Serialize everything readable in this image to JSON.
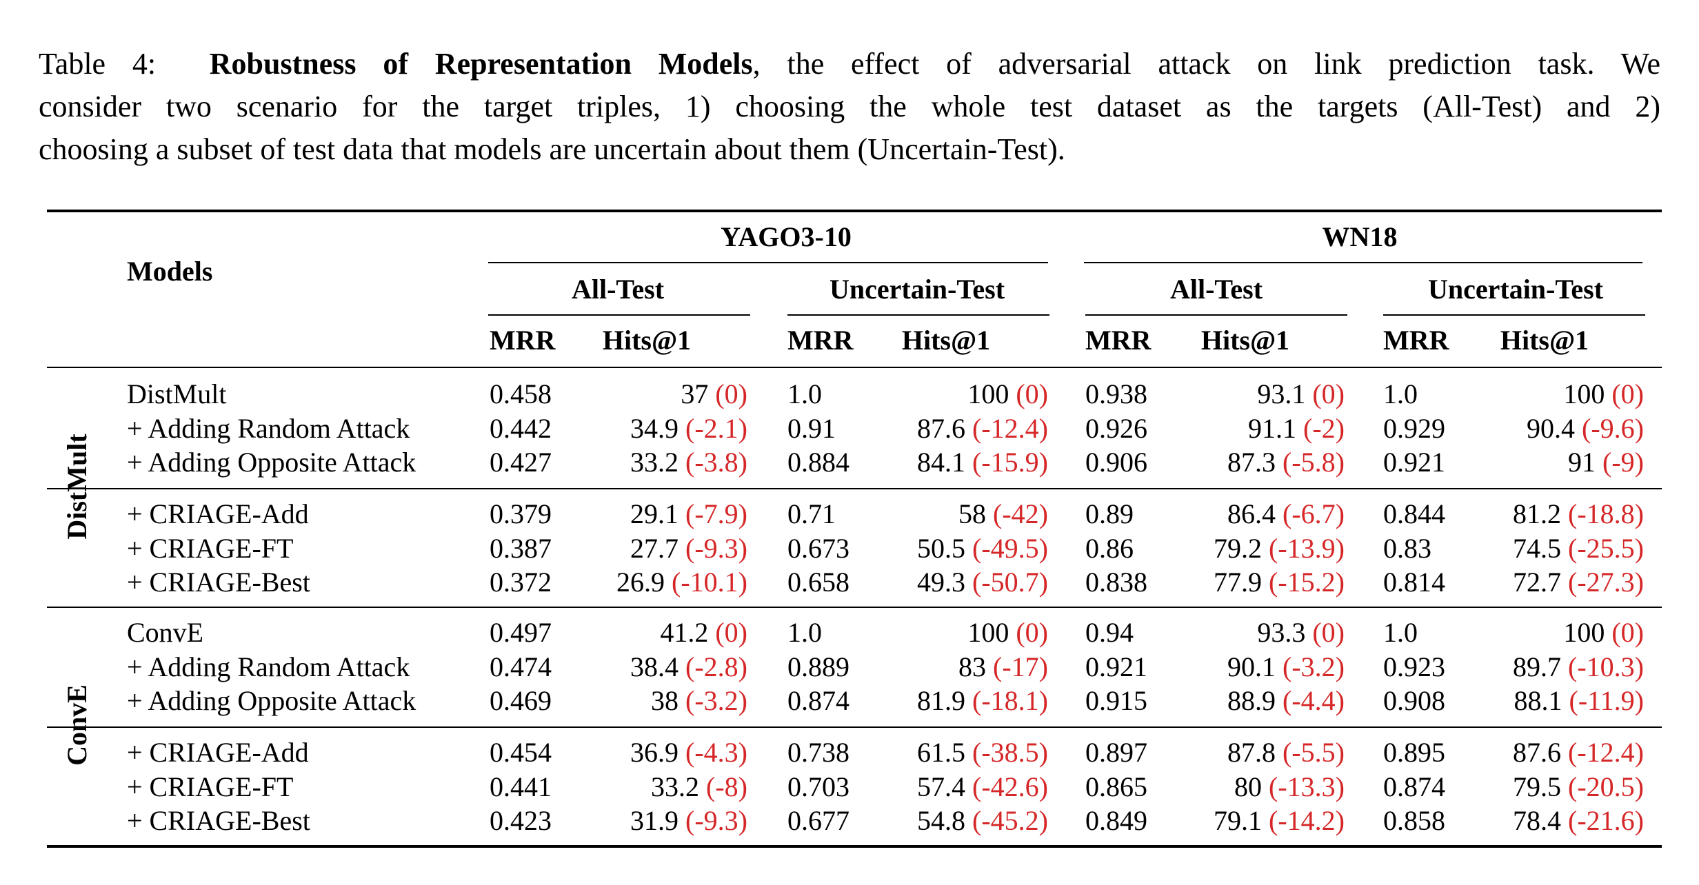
{
  "caption": {
    "label": "Table 4:",
    "bold_title": "Robustness of Representation Models",
    "text_1": ", the effect of adversarial attack on link prediction task.  We",
    "text_2": "consider two scenario for the target triples, 1) choosing the whole test dataset as the targets (All-Test) and 2)",
    "text_3": "choosing a subset of test data that models are uncertain about them (Uncertain-Test)."
  },
  "header": {
    "models": "Models",
    "datasets": [
      "YAGO3-10",
      "WN18"
    ],
    "splits": [
      "All-Test",
      "Uncertain-Test",
      "All-Test",
      "Uncertain-Test"
    ],
    "metrics": [
      "MRR",
      "Hits@1",
      "MRR",
      "Hits@1",
      "MRR",
      "Hits@1",
      "MRR",
      "Hits@1"
    ]
  },
  "groups": [
    {
      "name": "DistMult",
      "blocks": [
        [
          {
            "model": "DistMult",
            "cells": [
              [
                "0.458",
                ""
              ],
              [
                "37",
                "(0)"
              ],
              [
                "1.0",
                ""
              ],
              [
                "100",
                "(0)"
              ],
              [
                "0.938",
                ""
              ],
              [
                "93.1",
                "(0)"
              ],
              [
                "1.0",
                ""
              ],
              [
                "100",
                "(0)"
              ]
            ]
          },
          {
            "model": "+ Adding Random Attack",
            "cells": [
              [
                "0.442",
                ""
              ],
              [
                "34.9",
                "(-2.1)"
              ],
              [
                "0.91",
                ""
              ],
              [
                "87.6",
                "(-12.4)"
              ],
              [
                "0.926",
                ""
              ],
              [
                "91.1",
                "(-2)"
              ],
              [
                "0.929",
                ""
              ],
              [
                "90.4",
                "(-9.6)"
              ]
            ]
          },
          {
            "model": "+ Adding Opposite Attack",
            "cells": [
              [
                "0.427",
                ""
              ],
              [
                "33.2",
                "(-3.8)"
              ],
              [
                "0.884",
                ""
              ],
              [
                "84.1",
                "(-15.9)"
              ],
              [
                "0.906",
                ""
              ],
              [
                "87.3",
                "(-5.8)"
              ],
              [
                "0.921",
                ""
              ],
              [
                "91",
                "(-9)"
              ]
            ]
          }
        ],
        [
          {
            "model": "+ CRIAGE-Add",
            "cells": [
              [
                "0.379",
                ""
              ],
              [
                "29.1",
                "(-7.9)"
              ],
              [
                "0.71",
                ""
              ],
              [
                "58",
                "(-42)"
              ],
              [
                "0.89",
                ""
              ],
              [
                "86.4",
                "(-6.7)"
              ],
              [
                "0.844",
                ""
              ],
              [
                "81.2",
                "(-18.8)"
              ]
            ]
          },
          {
            "model": "+ CRIAGE-FT",
            "cells": [
              [
                "0.387",
                ""
              ],
              [
                "27.7",
                "(-9.3)"
              ],
              [
                "0.673",
                ""
              ],
              [
                "50.5",
                "(-49.5)"
              ],
              [
                "0.86",
                ""
              ],
              [
                "79.2",
                "(-13.9)"
              ],
              [
                "0.83",
                ""
              ],
              [
                "74.5",
                "(-25.5)"
              ]
            ]
          },
          {
            "model": "+ CRIAGE-Best",
            "cells": [
              [
                "0.372",
                ""
              ],
              [
                "26.9",
                "(-10.1)"
              ],
              [
                "0.658",
                ""
              ],
              [
                "49.3",
                "(-50.7)"
              ],
              [
                "0.838",
                ""
              ],
              [
                "77.9",
                "(-15.2)"
              ],
              [
                "0.814",
                ""
              ],
              [
                "72.7",
                "(-27.3)"
              ]
            ]
          }
        ]
      ]
    },
    {
      "name": "ConvE",
      "blocks": [
        [
          {
            "model": "ConvE",
            "cells": [
              [
                "0.497",
                ""
              ],
              [
                "41.2",
                "(0)"
              ],
              [
                "1.0",
                ""
              ],
              [
                "100",
                "(0)"
              ],
              [
                "0.94",
                ""
              ],
              [
                "93.3",
                "(0)"
              ],
              [
                "1.0",
                ""
              ],
              [
                "100",
                "(0)"
              ]
            ]
          },
          {
            "model": "+ Adding Random Attack",
            "cells": [
              [
                "0.474",
                ""
              ],
              [
                "38.4",
                "(-2.8)"
              ],
              [
                "0.889",
                ""
              ],
              [
                "83",
                "(-17)"
              ],
              [
                "0.921",
                ""
              ],
              [
                "90.1",
                "(-3.2)"
              ],
              [
                "0.923",
                ""
              ],
              [
                "89.7",
                "(-10.3)"
              ]
            ]
          },
          {
            "model": "+ Adding Opposite Attack",
            "cells": [
              [
                "0.469",
                ""
              ],
              [
                "38",
                "(-3.2)"
              ],
              [
                "0.874",
                ""
              ],
              [
                "81.9",
                "(-18.1)"
              ],
              [
                "0.915",
                ""
              ],
              [
                "88.9",
                "(-4.4)"
              ],
              [
                "0.908",
                ""
              ],
              [
                "88.1",
                "(-11.9)"
              ]
            ]
          }
        ],
        [
          {
            "model": "+ CRIAGE-Add",
            "cells": [
              [
                "0.454",
                ""
              ],
              [
                "36.9",
                "(-4.3)"
              ],
              [
                "0.738",
                ""
              ],
              [
                "61.5",
                "(-38.5)"
              ],
              [
                "0.897",
                ""
              ],
              [
                "87.8",
                "(-5.5)"
              ],
              [
                "0.895",
                ""
              ],
              [
                "87.6",
                "(-12.4)"
              ]
            ]
          },
          {
            "model": "+ CRIAGE-FT",
            "cells": [
              [
                "0.441",
                ""
              ],
              [
                "33.2",
                "(-8)"
              ],
              [
                "0.703",
                ""
              ],
              [
                "57.4",
                "(-42.6)"
              ],
              [
                "0.865",
                ""
              ],
              [
                "80",
                "(-13.3)"
              ],
              [
                "0.874",
                ""
              ],
              [
                "79.5",
                "(-20.5)"
              ]
            ]
          },
          {
            "model": "+ CRIAGE-Best",
            "cells": [
              [
                "0.423",
                ""
              ],
              [
                "31.9",
                "(-9.3)"
              ],
              [
                "0.677",
                ""
              ],
              [
                "54.8",
                "(-45.2)"
              ],
              [
                "0.849",
                ""
              ],
              [
                "79.1",
                "(-14.2)"
              ],
              [
                "0.858",
                ""
              ],
              [
                "78.4",
                "(-21.6)"
              ]
            ]
          }
        ]
      ]
    }
  ],
  "colors": {
    "delta": "#d62728",
    "text": "#000000"
  }
}
